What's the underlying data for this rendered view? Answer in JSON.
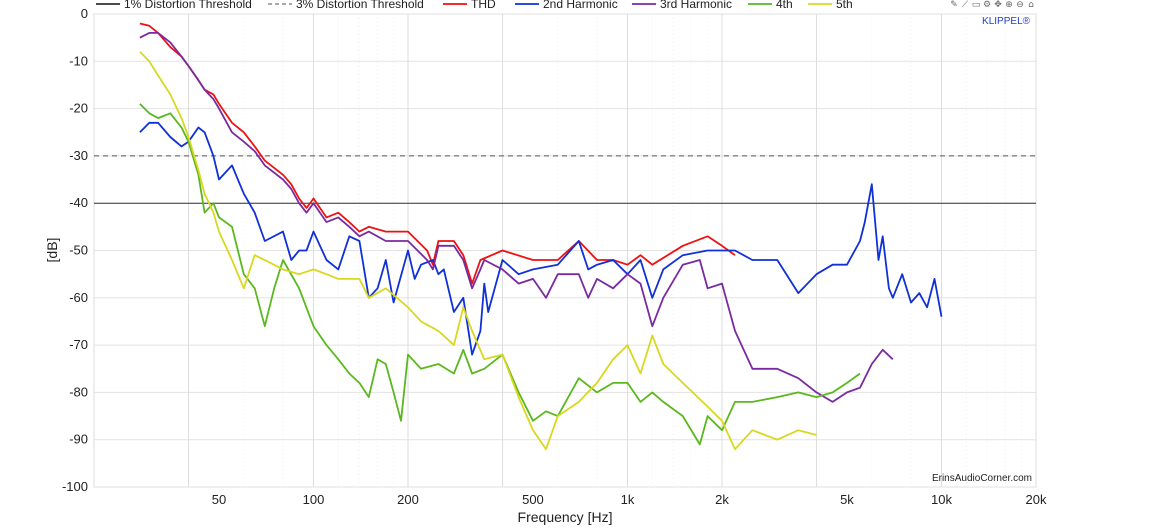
{
  "chart_data": {
    "type": "line",
    "xlabel": "Frequency [Hz]",
    "ylabel": "[dB]",
    "xscale": "log",
    "xlim": [
      20,
      20000
    ],
    "ylim": [
      -100,
      0
    ],
    "grid": true,
    "legend_position": "top",
    "x_ticks": [
      {
        "value": 50,
        "label": "50"
      },
      {
        "value": 100,
        "label": "100"
      },
      {
        "value": 200,
        "label": "200"
      },
      {
        "value": 500,
        "label": "500"
      },
      {
        "value": 1000,
        "label": "1k"
      },
      {
        "value": 2000,
        "label": "2k"
      },
      {
        "value": 5000,
        "label": "5k"
      },
      {
        "value": 10000,
        "label": "10k"
      },
      {
        "value": 20000,
        "label": "20k"
      }
    ],
    "y_ticks": [
      0,
      -10,
      -20,
      -30,
      -40,
      -50,
      -60,
      -70,
      -80,
      -90,
      -100
    ],
    "thresholds": [
      {
        "name": "1% Distortion Threshold",
        "value": -40,
        "color": "#333333",
        "dash": false
      },
      {
        "name": "3% Distortion Threshold",
        "value": -30,
        "color": "#555555",
        "dash": true
      }
    ],
    "series": [
      {
        "name": "THD",
        "color": "#ee1111",
        "x": [
          28,
          30,
          32,
          35,
          38,
          40,
          43,
          45,
          48,
          50,
          55,
          60,
          65,
          70,
          80,
          85,
          90,
          95,
          100,
          110,
          120,
          130,
          140,
          150,
          170,
          200,
          230,
          240,
          250,
          280,
          300,
          320,
          340,
          400,
          500,
          600,
          700,
          800,
          900,
          1000,
          1100,
          1200,
          1500,
          1800,
          2000,
          2200
        ],
        "y": [
          -2,
          -2.5,
          -4,
          -7,
          -9,
          -11,
          -14,
          -16,
          -17,
          -19,
          -23,
          -25,
          -28,
          -31,
          -34,
          -36,
          -39,
          -41,
          -39,
          -43,
          -42,
          -44,
          -46,
          -45,
          -46,
          -46,
          -50,
          -53,
          -48,
          -48,
          -51,
          -57,
          -52,
          -50,
          -52,
          -52,
          -48,
          -52,
          -52,
          -53,
          -51,
          -53,
          -49,
          -47,
          -49,
          -51
        ]
      },
      {
        "name": "2nd Harmonic",
        "color": "#1030d8",
        "x": [
          28,
          30,
          32,
          35,
          38,
          40,
          43,
          45,
          48,
          50,
          55,
          60,
          65,
          70,
          80,
          85,
          90,
          95,
          100,
          110,
          120,
          130,
          140,
          150,
          160,
          170,
          180,
          200,
          210,
          220,
          240,
          250,
          260,
          280,
          300,
          320,
          340,
          350,
          360,
          400,
          450,
          500,
          600,
          700,
          750,
          800,
          900,
          1000,
          1100,
          1200,
          1300,
          1500,
          1800,
          2000,
          2200,
          2500,
          3000,
          3500,
          4000,
          4500,
          5000,
          5500,
          5700,
          6000,
          6300,
          6500,
          6800,
          7000,
          7500,
          8000,
          8500,
          9000,
          9500,
          10000
        ],
        "y": [
          -25,
          -23,
          -23,
          -26,
          -28,
          -27,
          -24,
          -25,
          -30,
          -35,
          -32,
          -38,
          -42,
          -48,
          -46,
          -52,
          -50,
          -50,
          -46,
          -52,
          -54,
          -47,
          -48,
          -60,
          -58,
          -52,
          -61,
          -50,
          -56,
          -53,
          -52,
          -55,
          -54,
          -63,
          -60,
          -72,
          -67,
          -57,
          -63,
          -52,
          -55,
          -54,
          -53,
          -48,
          -54,
          -53,
          -52,
          -55,
          -52,
          -60,
          -54,
          -51,
          -50,
          -50,
          -50,
          -52,
          -52,
          -59,
          -55,
          -53,
          -53,
          -48,
          -44,
          -36,
          -52,
          -47,
          -58,
          -60,
          -55,
          -61,
          -59,
          -62,
          -56,
          -64
        ]
      },
      {
        "name": "3rd Harmonic",
        "color": "#7a2aa0",
        "x": [
          28,
          30,
          32,
          35,
          38,
          40,
          43,
          45,
          48,
          50,
          55,
          60,
          65,
          70,
          80,
          85,
          90,
          95,
          100,
          110,
          120,
          130,
          140,
          150,
          170,
          200,
          230,
          240,
          250,
          280,
          300,
          320,
          340,
          350,
          400,
          450,
          500,
          550,
          600,
          700,
          750,
          800,
          900,
          1000,
          1100,
          1200,
          1300,
          1500,
          1700,
          1800,
          2000,
          2200,
          2500,
          3000,
          3500,
          4000,
          4500,
          5000,
          5500,
          6000,
          6500,
          7000
        ],
        "y": [
          -5,
          -4,
          -4,
          -6,
          -9,
          -11,
          -14,
          -16,
          -18,
          -20,
          -25,
          -27,
          -29,
          -32,
          -35,
          -37,
          -40,
          -42,
          -40,
          -44,
          -43,
          -45,
          -47,
          -46,
          -48,
          -48,
          -52,
          -54,
          -49,
          -49,
          -52,
          -58,
          -54,
          -52,
          -54,
          -57,
          -56,
          -60,
          -55,
          -55,
          -60,
          -56,
          -58,
          -55,
          -57,
          -66,
          -60,
          -53,
          -52,
          -58,
          -57,
          -67,
          -75,
          -75,
          -77,
          -80,
          -82,
          -80,
          -79,
          -74,
          -71,
          -73
        ]
      },
      {
        "name": "4th",
        "color": "#5ab81e",
        "x": [
          28,
          30,
          32,
          35,
          38,
          40,
          43,
          45,
          48,
          50,
          55,
          60,
          65,
          70,
          75,
          80,
          90,
          100,
          110,
          120,
          130,
          140,
          150,
          160,
          170,
          180,
          190,
          200,
          220,
          250,
          280,
          300,
          320,
          350,
          400,
          450,
          500,
          550,
          600,
          700,
          800,
          900,
          1000,
          1100,
          1200,
          1300,
          1500,
          1700,
          1800,
          2000,
          2200,
          2500,
          3000,
          3500,
          4000,
          4500,
          5000,
          5500
        ],
        "y": [
          -19,
          -21,
          -22,
          -21,
          -24,
          -27,
          -34,
          -42,
          -40,
          -43,
          -45,
          -55,
          -58,
          -66,
          -58,
          -52,
          -58,
          -66,
          -70,
          -73,
          -76,
          -78,
          -81,
          -73,
          -74,
          -80,
          -86,
          -72,
          -75,
          -74,
          -76,
          -71,
          -76,
          -75,
          -72,
          -80,
          -86,
          -84,
          -85,
          -77,
          -80,
          -78,
          -78,
          -82,
          -80,
          -82,
          -85,
          -91,
          -85,
          -88,
          -82,
          -82,
          -81,
          -80,
          -81,
          -80,
          -78,
          -76
        ]
      },
      {
        "name": "5th",
        "color": "#d8d820",
        "x": [
          28,
          30,
          32,
          35,
          38,
          40,
          43,
          45,
          48,
          50,
          55,
          60,
          65,
          70,
          80,
          90,
          100,
          110,
          120,
          140,
          150,
          170,
          200,
          220,
          250,
          280,
          300,
          320,
          350,
          400,
          450,
          500,
          550,
          600,
          700,
          800,
          900,
          1000,
          1100,
          1200,
          1300,
          1500,
          1800,
          2000,
          2200,
          2500,
          3000,
          3500,
          4000
        ],
        "y": [
          -8,
          -10,
          -13,
          -17,
          -22,
          -26,
          -33,
          -38,
          -42,
          -46,
          -52,
          -58,
          -51,
          -52,
          -54,
          -55,
          -54,
          -55,
          -56,
          -56,
          -60,
          -58,
          -62,
          -65,
          -67,
          -70,
          -62,
          -67,
          -73,
          -72,
          -81,
          -88,
          -92,
          -85,
          -82,
          -78,
          -73,
          -70,
          -76,
          -68,
          -74,
          -78,
          -83,
          -86,
          -92,
          -88,
          -90,
          -88,
          -89
        ]
      }
    ],
    "credit": "ErinsAudioCorner.com",
    "brand": "KLIPPEL®"
  }
}
